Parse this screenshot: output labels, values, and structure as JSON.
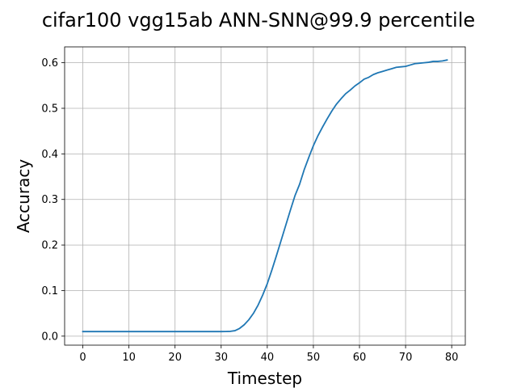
{
  "chart_data": {
    "type": "line",
    "title": "cifar100 vgg15ab ANN-SNN@99.9 percentile",
    "xlabel": "Timestep",
    "ylabel": "Accuracy",
    "xlim": [
      -3.95,
      82.95
    ],
    "ylim": [
      -0.0198,
      0.6348
    ],
    "xticks": [
      0,
      10,
      20,
      30,
      40,
      50,
      60,
      70,
      80
    ],
    "yticks": [
      0.0,
      0.1,
      0.2,
      0.3,
      0.4,
      0.5,
      0.6
    ],
    "xtick_labels": [
      "0",
      "10",
      "20",
      "30",
      "40",
      "50",
      "60",
      "70",
      "80"
    ],
    "ytick_labels": [
      "0.0",
      "0.1",
      "0.2",
      "0.3",
      "0.4",
      "0.5",
      "0.6"
    ],
    "grid": true,
    "series": [
      {
        "color": "#1f77b4",
        "x": [
          0,
          1,
          2,
          3,
          4,
          5,
          6,
          7,
          8,
          9,
          10,
          11,
          12,
          13,
          14,
          15,
          16,
          17,
          18,
          19,
          20,
          21,
          22,
          23,
          24,
          25,
          26,
          27,
          28,
          29,
          30,
          31,
          32,
          33,
          34,
          35,
          36,
          37,
          38,
          39,
          40,
          41,
          42,
          43,
          44,
          45,
          46,
          47,
          48,
          49,
          50,
          51,
          52,
          53,
          54,
          55,
          56,
          57,
          58,
          59,
          60,
          61,
          62,
          63,
          64,
          65,
          66,
          67,
          68,
          69,
          70,
          71,
          72,
          73,
          74,
          75,
          76,
          77,
          78,
          79
        ],
        "values": [
          0.01,
          0.01,
          0.01,
          0.01,
          0.01,
          0.01,
          0.01,
          0.01,
          0.01,
          0.01,
          0.01,
          0.01,
          0.01,
          0.01,
          0.01,
          0.01,
          0.01,
          0.01,
          0.01,
          0.01,
          0.01,
          0.01,
          0.01,
          0.01,
          0.01,
          0.01,
          0.01,
          0.01,
          0.01,
          0.01,
          0.01,
          0.0102,
          0.0105,
          0.012,
          0.017,
          0.025,
          0.036,
          0.05,
          0.068,
          0.09,
          0.115,
          0.145,
          0.177,
          0.21,
          0.243,
          0.276,
          0.308,
          0.333,
          0.365,
          0.392,
          0.418,
          0.44,
          0.459,
          0.477,
          0.494,
          0.509,
          0.521,
          0.532,
          0.54,
          0.549,
          0.556,
          0.564,
          0.568,
          0.574,
          0.578,
          0.581,
          0.584,
          0.587,
          0.59,
          0.591,
          0.592,
          0.595,
          0.598,
          0.599,
          0.6,
          0.601,
          0.603,
          0.603,
          0.604,
          0.606
        ]
      }
    ]
  }
}
